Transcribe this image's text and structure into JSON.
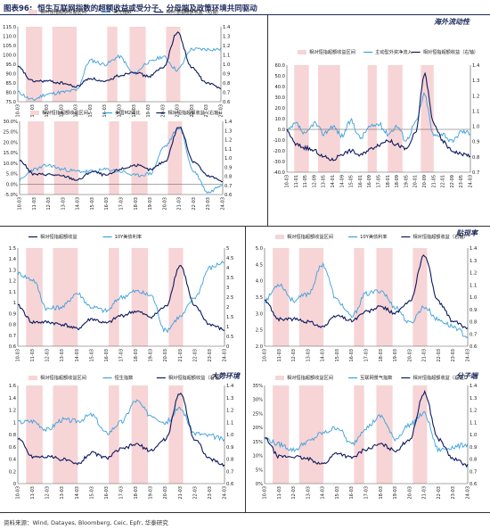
{
  "figure": {
    "number": "图表96:",
    "title": "恒生互联网指数的超额收益或受分子、分母端及政策环境共同驱动",
    "source": "资料来源：Wind, Datayes, Bloomberg, Ceic, Epfr, 华泰研究"
  },
  "panel_labels": {
    "overseas": "海外流动性",
    "rate": "贴现率",
    "macro": "大势环境",
    "numerator": "分子端"
  },
  "dates": [
    "10-03",
    "11-03",
    "12-03",
    "13-03",
    "14-03",
    "15-03",
    "16-03",
    "17-03",
    "18-03",
    "19-03",
    "20-03",
    "21-03",
    "22-03",
    "23-03",
    "24-03"
  ],
  "chart_data": [
    {
      "id": "usd",
      "type": "line",
      "legend": [
        "相对恒指超额收益区间",
        "美元指数",
        "相对恒指超额收益（右轴）"
      ],
      "ylim_left": [
        75,
        115
      ],
      "yticks_left": [
        "75.0",
        "80.0",
        "85.0",
        "90.0",
        "95.0",
        "100.0",
        "105.0",
        "110.0",
        "115.0"
      ],
      "ylim_right": [
        0.6,
        1.4
      ],
      "yticks_right": [
        "0.6",
        "0.7",
        "0.8",
        "0.9",
        "1.0",
        "1.1",
        "1.2",
        "1.3",
        "1.4"
      ],
      "series": [
        {
          "name": "美元指数",
          "axis": "left",
          "color": "#3aa0dc",
          "values": [
            80,
            76,
            79,
            80,
            81,
            97,
            95,
            99,
            90,
            96,
            99,
            92,
            103,
            103,
            103
          ]
        },
        {
          "name": "相对恒指超额收益（右轴）",
          "axis": "right",
          "color": "#0b1a5e",
          "values": [
            0.97,
            0.82,
            0.82,
            0.8,
            0.76,
            0.85,
            0.81,
            0.88,
            0.92,
            0.87,
            0.96,
            1.34,
            0.96,
            0.8,
            0.75
          ]
        }
      ]
    },
    {
      "id": "m2",
      "type": "line",
      "legend": [
        "相对恒指超额收益区间",
        "美国M2同比",
        "相对恒指超额收益（右轴）"
      ],
      "ylim_left": [
        -0.05,
        0.3
      ],
      "yticks_left": [
        "-5.0%",
        "0.0%",
        "5.0%",
        "10.0%",
        "15.0%",
        "20.0%",
        "25.0%",
        "30.0%"
      ],
      "ylim_right": [
        0.6,
        1.4
      ],
      "yticks_right": [
        "0.6",
        "0.7",
        "0.8",
        "0.9",
        "1.0",
        "1.1",
        "1.2",
        "1.3",
        "1.4"
      ],
      "series": [
        {
          "name": "美国M2同比",
          "axis": "left",
          "color": "#3aa0dc",
          "values": [
            0.02,
            0.07,
            0.09,
            0.07,
            0.06,
            0.06,
            0.07,
            0.06,
            0.04,
            0.05,
            0.18,
            0.27,
            0.06,
            -0.04,
            0.0
          ]
        },
        {
          "name": "相对恒指超额收益（右轴）",
          "axis": "right",
          "color": "#0b1a5e",
          "values": [
            0.97,
            0.82,
            0.82,
            0.8,
            0.76,
            0.85,
            0.81,
            0.88,
            0.92,
            0.87,
            0.96,
            1.34,
            0.96,
            0.8,
            0.75
          ]
        }
      ]
    },
    {
      "id": "flows",
      "type": "line",
      "legend": [
        "相对恒指超额收益区间",
        "主动型外资净流入",
        "相对恒指超额收益（右轴）"
      ],
      "dates": [
        "10-03",
        "11-01",
        "11-05",
        "12-09",
        "13-05",
        "14-01",
        "14-09",
        "15-05",
        "16-01",
        "16-09",
        "17-05",
        "18-01",
        "18-09",
        "19-05",
        "20-01",
        "20-09",
        "21-05",
        "22-01",
        "22-09",
        "23-05",
        "24-03"
      ],
      "ylim_left": [
        -40,
        60
      ],
      "yticks_left": [
        "-40.0",
        "-30.0",
        "-20.0",
        "-10.0",
        "0.0",
        "10.0",
        "20.0",
        "30.0",
        "40.0",
        "50.0",
        "60.0"
      ],
      "ylim_right": [
        0.7,
        1.4
      ],
      "yticks_right": [
        "0.7",
        "0.8",
        "0.9",
        "1.0",
        "1.1",
        "1.2",
        "1.3",
        "1.4"
      ],
      "series": [
        {
          "name": "主动型外资净流入",
          "axis": "left",
          "color": "#3aa0dc",
          "values": [
            -2,
            5,
            -5,
            6,
            -4,
            3,
            -6,
            8,
            -8,
            2,
            5,
            -4,
            3,
            -10,
            6,
            32,
            -6,
            -4,
            -12,
            -2,
            -3
          ]
        },
        {
          "name": "相对恒指超额收益（右轴）",
          "axis": "right",
          "color": "#0b1a5e",
          "values": [
            0.97,
            0.88,
            0.86,
            0.84,
            0.8,
            0.78,
            0.82,
            0.84,
            0.81,
            0.85,
            0.88,
            0.91,
            0.88,
            0.85,
            0.95,
            1.34,
            1.02,
            0.9,
            0.84,
            0.82,
            0.81
          ]
        }
      ]
    },
    {
      "id": "ust10y",
      "type": "line",
      "legend": [
        "相对恒指超额收益",
        "10Y美债利率"
      ],
      "ylim_left": [
        0.6,
        1.5
      ],
      "yticks_left": [
        "0.6",
        "0.7",
        "0.8",
        "0.9",
        "1",
        "1.1",
        "1.2",
        "1.3",
        "1.4",
        "1.5"
      ],
      "ylim_right": [
        0,
        5
      ],
      "yticks_right": [
        "0",
        "0.5",
        "1",
        "1.5",
        "2",
        "2.5",
        "3",
        "3.5",
        "4",
        "4.5",
        "5"
      ],
      "series": [
        {
          "name": "相对恒指超额收益",
          "axis": "left",
          "color": "#0b1a5e",
          "values": [
            0.97,
            0.82,
            0.82,
            0.8,
            0.76,
            0.85,
            0.81,
            0.88,
            0.92,
            0.87,
            0.96,
            1.34,
            0.96,
            0.8,
            0.75
          ]
        },
        {
          "name": "10Y美债利率",
          "axis": "right",
          "color": "#3aa0dc",
          "values": [
            3.7,
            3.4,
            1.9,
            2.0,
            2.7,
            2.0,
            1.8,
            2.5,
            2.8,
            2.6,
            0.8,
            1.5,
            2.5,
            4.0,
            4.3
          ]
        }
      ]
    },
    {
      "id": "cn10y",
      "type": "line",
      "legend": [
        "相对恒指超额收益区间",
        "10Y美债利率",
        "相对恒指超额收益（右轴）"
      ],
      "ylim_left": [
        2.0,
        5.0
      ],
      "yticks_left": [
        "2.0",
        "2.5",
        "3.0",
        "3.5",
        "4.0",
        "4.5",
        "5.0"
      ],
      "ylim_right": [
        0.6,
        1.4
      ],
      "yticks_right": [
        "0.6",
        "0.7",
        "0.8",
        "0.9",
        "1.0",
        "1.1",
        "1.2",
        "1.3",
        "1.4"
      ],
      "series": [
        {
          "name": "10Y美债利率",
          "axis": "left",
          "color": "#3aa0dc",
          "values": [
            3.4,
            3.9,
            3.4,
            3.6,
            4.5,
            3.4,
            2.9,
            3.6,
            3.7,
            3.2,
            2.7,
            3.2,
            2.8,
            2.6,
            2.3
          ]
        },
        {
          "name": "相对恒指超额收益（右轴）",
          "axis": "right",
          "color": "#0b1a5e",
          "values": [
            0.97,
            0.82,
            0.82,
            0.8,
            0.76,
            0.85,
            0.81,
            0.88,
            0.92,
            0.87,
            0.96,
            1.34,
            0.96,
            0.8,
            0.75
          ]
        }
      ]
    },
    {
      "id": "hsi",
      "type": "line",
      "legend": [
        "相对恒指超额收益区间",
        "恒生指数",
        "相对恒指超额收益（右轴）"
      ],
      "ylim_left": [
        0,
        1.6
      ],
      "yticks_left": [
        "0",
        "0.2",
        "0.4",
        "0.6",
        "0.8",
        "1",
        "1.2",
        "1.4",
        "1.6"
      ],
      "ylim_right": [
        0.6,
        1.4
      ],
      "yticks_right": [
        "0.6",
        "0.7",
        "0.8",
        "0.9",
        "1.0",
        "1.1",
        "1.2",
        "1.3",
        "1.4"
      ],
      "series": [
        {
          "name": "恒生指数",
          "axis": "left",
          "color": "#3aa0dc",
          "values": [
            1.0,
            1.02,
            0.88,
            1.04,
            1.02,
            1.12,
            0.82,
            1.0,
            1.35,
            1.12,
            1.0,
            1.22,
            0.82,
            0.78,
            0.72
          ]
        },
        {
          "name": "相对恒指超额收益（右轴）",
          "axis": "right",
          "color": "#0b1a5e",
          "values": [
            0.97,
            0.82,
            0.82,
            0.8,
            0.76,
            0.85,
            0.81,
            0.88,
            0.92,
            0.87,
            0.96,
            1.34,
            0.96,
            0.8,
            0.75
          ]
        }
      ]
    },
    {
      "id": "sentiment",
      "type": "line",
      "legend": [
        "相对恒指超额收益区间",
        "互联网景气指数",
        "相对恒指超额收益（右轴）"
      ],
      "ylim_left": [
        0.0,
        0.35
      ],
      "yticks_left": [
        "0%",
        "5%",
        "10%",
        "15%",
        "20%",
        "25%",
        "30%",
        "35%"
      ],
      "ylim_right": [
        0.6,
        1.4
      ],
      "yticks_right": [
        "0.6",
        "0.7",
        "0.8",
        "0.9",
        "1.0",
        "1.1",
        "1.2",
        "1.3",
        "1.4"
      ],
      "series": [
        {
          "name": "互联网景气指数",
          "axis": "left",
          "color": "#3aa0dc",
          "values": [
            0.16,
            0.14,
            0.12,
            0.15,
            0.18,
            0.2,
            0.14,
            0.2,
            0.24,
            0.16,
            0.21,
            0.25,
            0.12,
            0.13,
            0.14
          ]
        },
        {
          "name": "相对恒指超额收益（右轴）",
          "axis": "right",
          "color": "#0b1a5e",
          "values": [
            0.97,
            0.82,
            0.82,
            0.8,
            0.76,
            0.85,
            0.81,
            0.88,
            0.92,
            0.87,
            0.96,
            1.34,
            0.96,
            0.8,
            0.75
          ]
        }
      ]
    }
  ],
  "shading_intervals": [
    [
      0.04,
      0.12
    ],
    [
      0.17,
      0.29
    ],
    [
      0.44,
      0.49
    ],
    [
      0.55,
      0.63
    ],
    [
      0.73,
      0.8
    ]
  ],
  "colors": {
    "shade": "#f7d4d6",
    "navy": "#0b1a5e",
    "blue": "#3aa0dc",
    "title": "#1c2a5a"
  }
}
